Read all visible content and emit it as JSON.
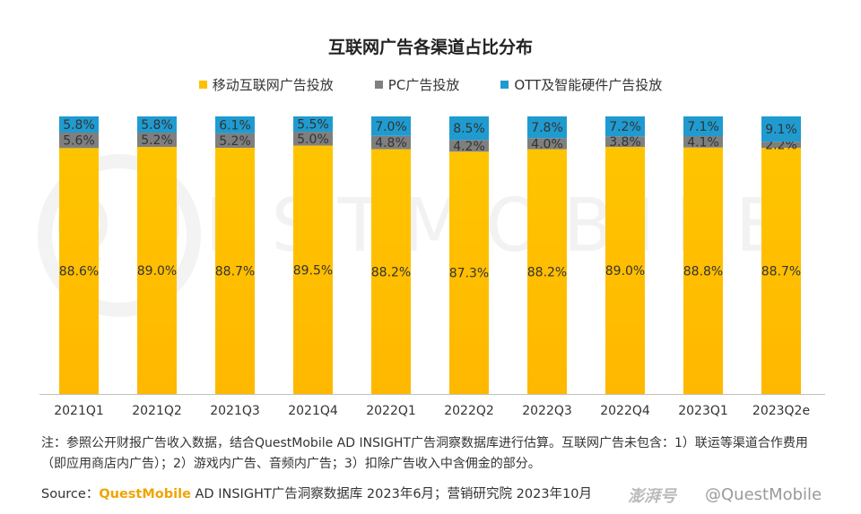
{
  "chart_data": {
    "type": "bar",
    "stacked": true,
    "title": "互联网广告各渠道占比分布",
    "categories": [
      "2021Q1",
      "2021Q2",
      "2021Q3",
      "2021Q4",
      "2022Q1",
      "2022Q2",
      "2022Q3",
      "2022Q4",
      "2023Q1",
      "2023Q2e"
    ],
    "series": [
      {
        "name": "移动互联网广告投放",
        "color": "#FFC000",
        "values": [
          88.6,
          89.0,
          88.7,
          89.5,
          88.2,
          87.3,
          88.2,
          89.0,
          88.8,
          88.7
        ],
        "labels": [
          "88.6%",
          "89.0%",
          "88.7%",
          "89.5%",
          "88.2%",
          "87.3%",
          "88.2%",
          "89.0%",
          "88.8%",
          "88.7%"
        ]
      },
      {
        "name": "PC广告投放",
        "color": "#7F7F7F",
        "values": [
          5.6,
          5.2,
          5.2,
          5.0,
          4.8,
          4.2,
          4.0,
          3.8,
          4.1,
          2.2
        ],
        "labels": [
          "5.6%",
          "5.2%",
          "5.2%",
          "5.0%",
          "4.8%",
          "4.2%",
          "4.0%",
          "3.8%",
          "4.1%",
          "2.2%"
        ]
      },
      {
        "name": "OTT及智能硬件广告投放",
        "color": "#1F9BD0",
        "values": [
          5.8,
          5.8,
          6.1,
          5.5,
          7.0,
          8.5,
          7.8,
          7.2,
          7.1,
          9.1
        ],
        "labels": [
          "5.8%",
          "5.8%",
          "6.1%",
          "5.5%",
          "7.0%",
          "8.5%",
          "7.8%",
          "7.2%",
          "7.1%",
          "9.1%"
        ]
      }
    ],
    "ylim": [
      0,
      100
    ],
    "legend_position": "top-center",
    "grid": false
  },
  "note": "注：参照公开财报广告收入数据，结合QuestMobile AD INSIGHT广告洞察数据库进行估算。互联网广告未包含：1）联运等渠道合作费用（即应用商店内广告）；2）游戏内广告、音频内广告；3）扣除广告收入中含佣金的部分。",
  "source": {
    "prefix": "Source：",
    "brand": "QuestMobile",
    "rest": " AD INSIGHT广告洞察数据库 2023年6月；营销研究院 2023年10月"
  },
  "watermark": "QUESTMOBILE",
  "footer": {
    "logo": "澎湃号",
    "handle": "@QuestMobile"
  }
}
